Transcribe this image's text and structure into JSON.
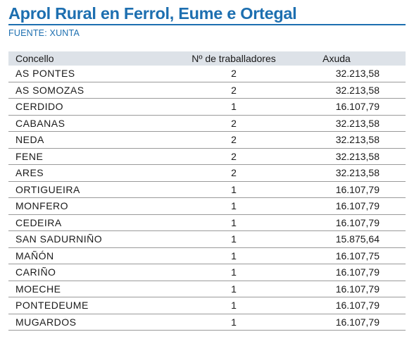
{
  "title": "Aprol Rural en Ferrol, Eume e Ortegal",
  "source": "FUENTE: XUNTA",
  "columns": [
    "Concello",
    "Nº de traballadores",
    "Axuda"
  ],
  "rows": [
    {
      "concello": "AS PONTES",
      "traballadores": "2",
      "axuda": "32.213,58"
    },
    {
      "concello": "AS SOMOZAS",
      "traballadores": "2",
      "axuda": "32.213,58"
    },
    {
      "concello": "CERDIDO",
      "traballadores": "1",
      "axuda": "16.107,79"
    },
    {
      "concello": "CABANAS",
      "traballadores": "2",
      "axuda": "32.213,58"
    },
    {
      "concello": "NEDA",
      "traballadores": "2",
      "axuda": "32.213,58"
    },
    {
      "concello": "FENE",
      "traballadores": "2",
      "axuda": "32.213,58"
    },
    {
      "concello": "ARES",
      "traballadores": "2",
      "axuda": "32.213,58"
    },
    {
      "concello": "ORTIGUEIRA",
      "traballadores": "1",
      "axuda": "16.107,79"
    },
    {
      "concello": "MONFERO",
      "traballadores": "1",
      "axuda": "16.107,79"
    },
    {
      "concello": "CEDEIRA",
      "traballadores": "1",
      "axuda": "16.107,79"
    },
    {
      "concello": "SAN SADURNIÑO",
      "traballadores": "1",
      "axuda": "15.875,64"
    },
    {
      "concello": "MAÑÓN",
      "traballadores": "1",
      "axuda": "16.107,75"
    },
    {
      "concello": "CARIÑO",
      "traballadores": "1",
      "axuda": "16.107,79"
    },
    {
      "concello": "MOECHE",
      "traballadores": "1",
      "axuda": "16.107,79"
    },
    {
      "concello": "PONTEDEUME",
      "traballadores": "1",
      "axuda": "16.107,79"
    },
    {
      "concello": "MUGARDOS",
      "traballadores": "1",
      "axuda": "16.107,79"
    }
  ],
  "colors": {
    "accent": "#1d6fb0",
    "header_bg": "#dde2e8",
    "rule": "#9a9a9a"
  }
}
